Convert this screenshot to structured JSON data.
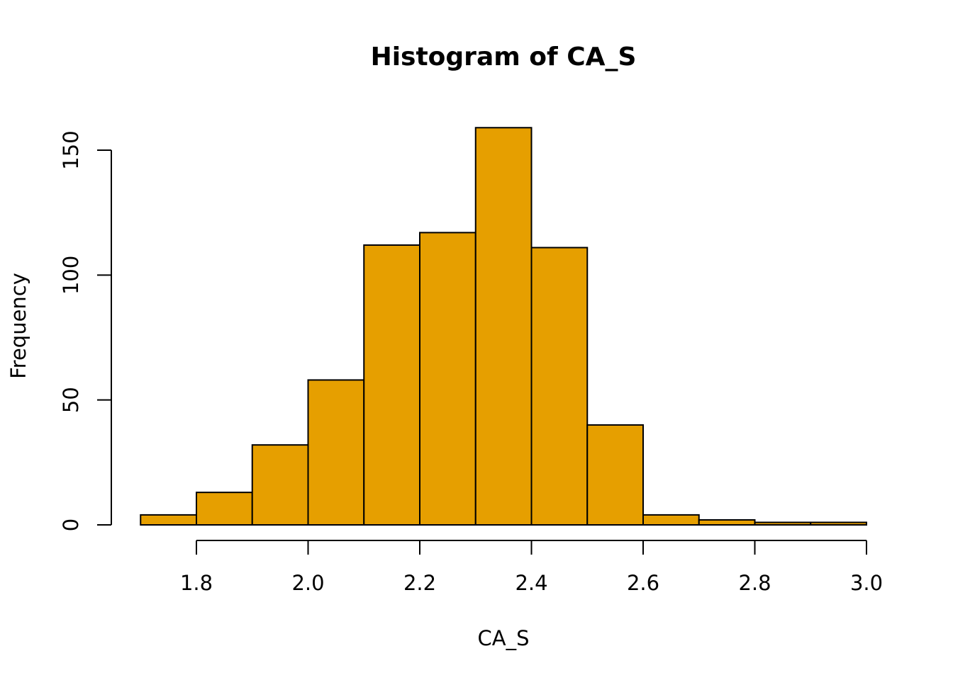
{
  "chart_data": {
    "type": "bar",
    "subtype": "histogram",
    "title": "Histogram of CA_S",
    "xlabel": "CA_S",
    "ylabel": "Frequency",
    "bar_color": "#E69F00",
    "border_color": "#000000",
    "bins": [
      {
        "start": 1.7,
        "end": 1.8,
        "count": 4
      },
      {
        "start": 1.8,
        "end": 1.9,
        "count": 13
      },
      {
        "start": 1.9,
        "end": 2.0,
        "count": 32
      },
      {
        "start": 2.0,
        "end": 2.1,
        "count": 58
      },
      {
        "start": 2.1,
        "end": 2.2,
        "count": 112
      },
      {
        "start": 2.2,
        "end": 2.3,
        "count": 117
      },
      {
        "start": 2.3,
        "end": 2.4,
        "count": 159
      },
      {
        "start": 2.4,
        "end": 2.5,
        "count": 111
      },
      {
        "start": 2.5,
        "end": 2.6,
        "count": 40
      },
      {
        "start": 2.6,
        "end": 2.7,
        "count": 4
      },
      {
        "start": 2.7,
        "end": 2.8,
        "count": 2
      },
      {
        "start": 2.8,
        "end": 2.9,
        "count": 1
      },
      {
        "start": 2.9,
        "end": 3.0,
        "count": 1
      }
    ],
    "x_ticks": [
      1.8,
      2.0,
      2.2,
      2.4,
      2.6,
      2.8,
      3.0
    ],
    "x_tick_labels": [
      "1.8",
      "2.0",
      "2.2",
      "2.4",
      "2.6",
      "2.8",
      "3.0"
    ],
    "y_ticks": [
      0,
      50,
      100,
      150
    ],
    "y_tick_labels": [
      "0",
      "50",
      "100",
      "150"
    ],
    "xlim": [
      1.7,
      3.0
    ],
    "ylim": [
      0,
      160
    ],
    "grid": false,
    "legend": "none"
  }
}
